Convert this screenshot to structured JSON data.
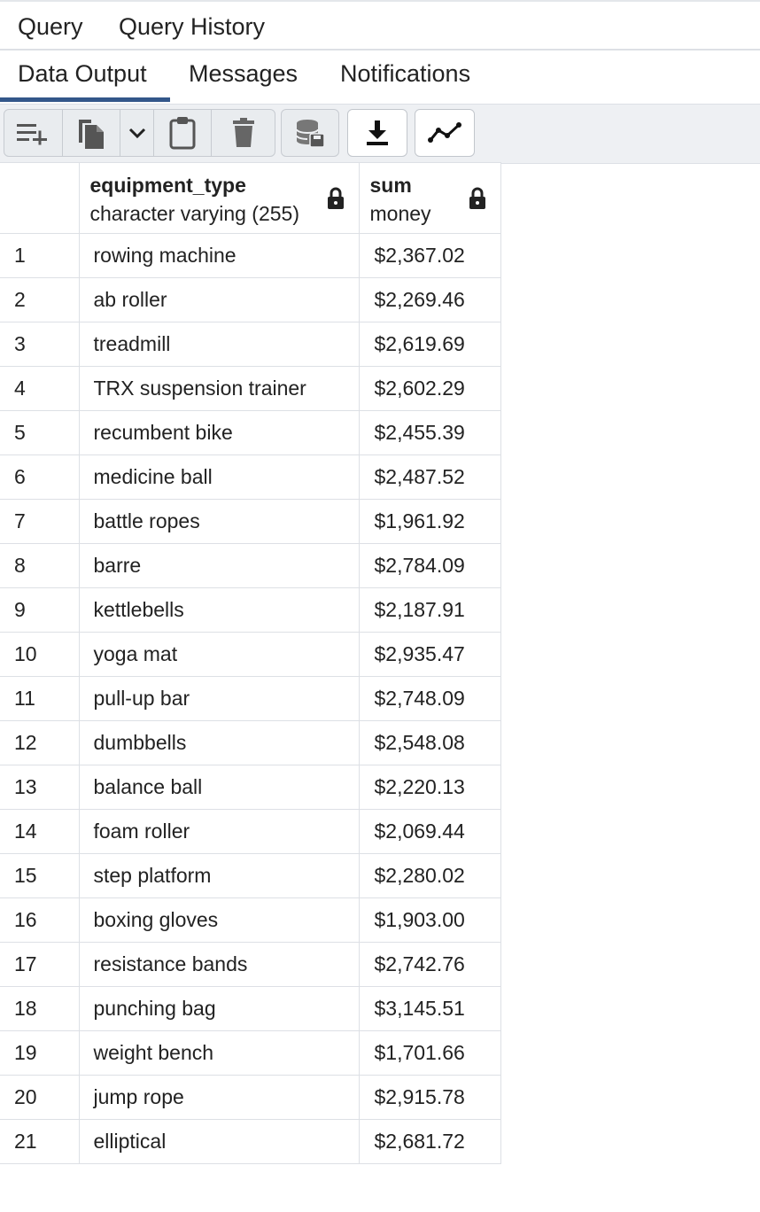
{
  "tabs_top": [
    "Query",
    "Query History"
  ],
  "tabs_bottom": [
    "Data Output",
    "Messages",
    "Notifications"
  ],
  "active_tab": "Data Output",
  "toolbar": {
    "icons": [
      "add-row-icon",
      "copy-icon",
      "chevron-down-icon",
      "paste-icon",
      "delete-icon",
      "save-data-icon",
      "download-icon",
      "graph-icon"
    ]
  },
  "columns": [
    {
      "name": "equipment_type",
      "type": "character varying (255)",
      "locked": true
    },
    {
      "name": "sum",
      "type": "money",
      "locked": true
    }
  ],
  "rows": [
    {
      "n": "1",
      "equipment_type": "rowing machine",
      "sum": "$2,367.02"
    },
    {
      "n": "2",
      "equipment_type": "ab roller",
      "sum": "$2,269.46"
    },
    {
      "n": "3",
      "equipment_type": "treadmill",
      "sum": "$2,619.69"
    },
    {
      "n": "4",
      "equipment_type": "TRX suspension trainer",
      "sum": "$2,602.29"
    },
    {
      "n": "5",
      "equipment_type": "recumbent bike",
      "sum": "$2,455.39"
    },
    {
      "n": "6",
      "equipment_type": "medicine ball",
      "sum": "$2,487.52"
    },
    {
      "n": "7",
      "equipment_type": "battle ropes",
      "sum": "$1,961.92"
    },
    {
      "n": "8",
      "equipment_type": "barre",
      "sum": "$2,784.09"
    },
    {
      "n": "9",
      "equipment_type": "kettlebells",
      "sum": "$2,187.91"
    },
    {
      "n": "10",
      "equipment_type": "yoga mat",
      "sum": "$2,935.47"
    },
    {
      "n": "11",
      "equipment_type": "pull-up bar",
      "sum": "$2,748.09"
    },
    {
      "n": "12",
      "equipment_type": "dumbbells",
      "sum": "$2,548.08"
    },
    {
      "n": "13",
      "equipment_type": "balance ball",
      "sum": "$2,220.13"
    },
    {
      "n": "14",
      "equipment_type": "foam roller",
      "sum": "$2,069.44"
    },
    {
      "n": "15",
      "equipment_type": "step platform",
      "sum": "$2,280.02"
    },
    {
      "n": "16",
      "equipment_type": "boxing gloves",
      "sum": "$1,903.00"
    },
    {
      "n": "17",
      "equipment_type": "resistance bands",
      "sum": "$2,742.76"
    },
    {
      "n": "18",
      "equipment_type": "punching bag",
      "sum": "$3,145.51"
    },
    {
      "n": "19",
      "equipment_type": "weight bench",
      "sum": "$1,701.66"
    },
    {
      "n": "20",
      "equipment_type": "jump rope",
      "sum": "$2,915.78"
    },
    {
      "n": "21",
      "equipment_type": "elliptical",
      "sum": "$2,681.72"
    }
  ]
}
